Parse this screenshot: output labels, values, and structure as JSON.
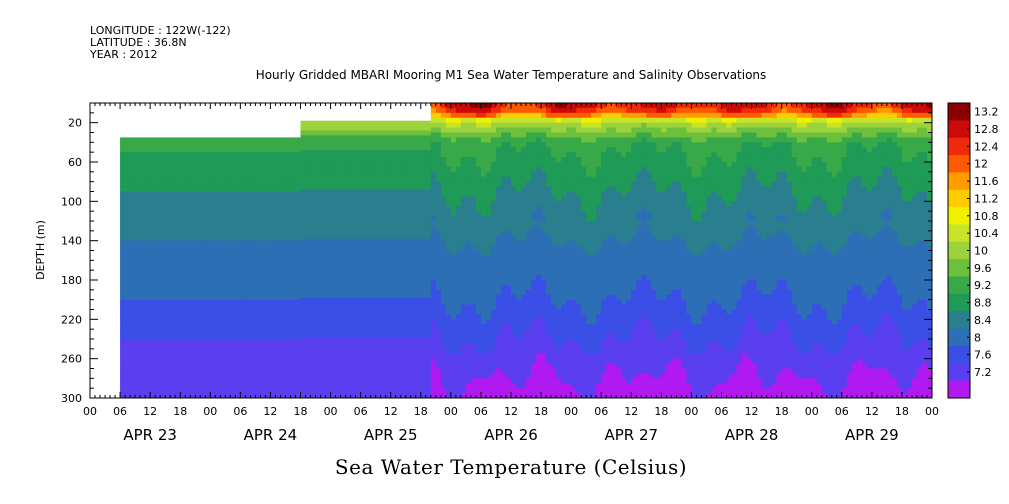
{
  "header": {
    "longitude": "LONGITUDE : 122W(-122)",
    "latitude": "LATITUDE : 36.8N",
    "year": "YEAR : 2012"
  },
  "chart_data": {
    "type": "heatmap",
    "title": "Hourly Gridded MBARI Mooring M1 Sea Water Temperature and Salinity Observations",
    "colorbar_title": "Sea Water Temperature (Celsius)",
    "ylabel": "DEPTH (m)",
    "ylim": [
      300,
      0
    ],
    "y_ticks": [
      20,
      60,
      100,
      140,
      180,
      220,
      260,
      300
    ],
    "x_hour_ticks": [
      "00",
      "06",
      "12",
      "18",
      "00",
      "06",
      "12",
      "18",
      "00",
      "06",
      "12",
      "18",
      "00",
      "06",
      "12",
      "18",
      "00",
      "06",
      "12",
      "18",
      "00",
      "06",
      "12",
      "18",
      "00",
      "06",
      "12",
      "18",
      "00"
    ],
    "x_day_labels": [
      "APR 23",
      "APR 24",
      "APR 25",
      "APR 26",
      "APR 27",
      "APR 28",
      "APR 29"
    ],
    "colorbar_levels": [
      13.2,
      12.8,
      12.4,
      12,
      11.6,
      11.2,
      10.8,
      10.4,
      10,
      9.6,
      9.2,
      8.8,
      8.4,
      8,
      7.6,
      7.2
    ],
    "colors": {
      "t13_2": "#8b0000",
      "t12_8": "#cc0a0a",
      "t12_4": "#ee2a0a",
      "t12": "#ff5a00",
      "t11_6": "#ff9c00",
      "t11_2": "#ffcc00",
      "t10_8": "#f0f000",
      "t10_4": "#c8e428",
      "t10": "#9cd23c",
      "t9_6": "#6cc03c",
      "t9_2": "#38a848",
      "t8_8": "#1f9a57",
      "t8_4": "#2a7f8f",
      "t8": "#2d6fb5",
      "t7_6": "#3a4fe6",
      "t7_2": "#5a3ff0",
      "t_min": "#b01af0"
    },
    "depth_profile": [
      {
        "depth": 5,
        "temp": 12.2
      },
      {
        "depth": 20,
        "temp": 10.4
      },
      {
        "depth": 40,
        "temp": 9.3
      },
      {
        "depth": 60,
        "temp": 9.1
      },
      {
        "depth": 100,
        "temp": 8.7
      },
      {
        "depth": 140,
        "temp": 8.4
      },
      {
        "depth": 180,
        "temp": 8.1
      },
      {
        "depth": 220,
        "temp": 7.9
      },
      {
        "depth": 260,
        "temp": 7.7
      },
      {
        "depth": 300,
        "temp": 7.4
      }
    ]
  }
}
